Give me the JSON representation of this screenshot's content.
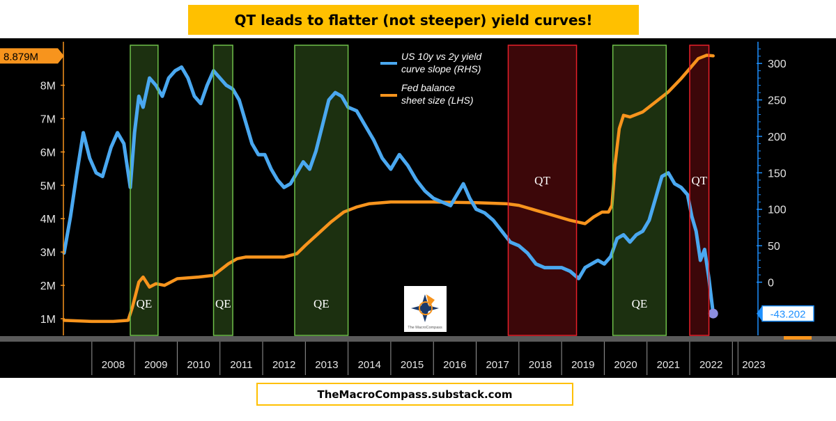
{
  "title": "QT leads to flatter (not steeper) yield curves!",
  "footer": "TheMacroCompass.substack.com",
  "colors": {
    "yield_curve": "#4aa8f0",
    "balance_sheet": "#f7941d",
    "qe_band": "#5e9e34",
    "qt_band": "#d71920",
    "background": "#000000",
    "banner": "#ffc000"
  },
  "logo": {
    "icon": "compass-logo",
    "caption": "The MacroCompass"
  },
  "chart_data": {
    "type": "line",
    "x_ticks": [
      "2008",
      "2009",
      "2010",
      "2011",
      "2012",
      "2013",
      "2014",
      "2015",
      "2016",
      "2017",
      "2018",
      "2019",
      "2020",
      "2021",
      "2022",
      "2023"
    ],
    "x_range": [
      2007.35,
      2023.55
    ],
    "left_axis": {
      "ticks": [
        "1M",
        "2M",
        "3M",
        "4M",
        "5M",
        "6M",
        "7M",
        "8M"
      ],
      "range": [
        0.5,
        9.2
      ],
      "last_value_label": "8.879M"
    },
    "right_axis": {
      "ticks": [
        "0",
        "50",
        "100",
        "150",
        "200",
        "250",
        "300"
      ],
      "range": [
        -73,
        325
      ],
      "last_value_label": "-43.202"
    },
    "legend": [
      {
        "name": "US 10y vs 2y yield curve slope (RHS)",
        "color": "#4aa8f0"
      },
      {
        "name": "Fed balance sheet size (LHS)",
        "color": "#f7941d"
      }
    ],
    "bands": [
      {
        "label": "QE",
        "type": "QE",
        "start": 2008.9,
        "end": 2009.55
      },
      {
        "label": "QE",
        "type": "QE",
        "start": 2010.85,
        "end": 2011.3
      },
      {
        "label": "QE",
        "type": "QE",
        "start": 2012.75,
        "end": 2014.0
      },
      {
        "label": "QT",
        "type": "QT",
        "start": 2017.75,
        "end": 2019.35
      },
      {
        "label": "QE",
        "type": "QE",
        "start": 2020.2,
        "end": 2021.45
      },
      {
        "label": "QT",
        "type": "QT",
        "start": 2022.0,
        "end": 2022.45
      }
    ],
    "series": [
      {
        "name": "US 10y vs 2y yield curve slope (RHS)",
        "axis": "right",
        "x": [
          2007.35,
          2007.5,
          2007.65,
          2007.8,
          2007.95,
          2008.1,
          2008.25,
          2008.45,
          2008.6,
          2008.75,
          2008.9,
          2009.0,
          2009.1,
          2009.2,
          2009.35,
          2009.5,
          2009.65,
          2009.8,
          2009.95,
          2010.1,
          2010.25,
          2010.4,
          2010.55,
          2010.7,
          2010.85,
          2011.0,
          2011.15,
          2011.3,
          2011.45,
          2011.6,
          2011.75,
          2011.9,
          2012.05,
          2012.2,
          2012.35,
          2012.5,
          2012.65,
          2012.8,
          2012.95,
          2013.1,
          2013.25,
          2013.4,
          2013.55,
          2013.7,
          2013.85,
          2014.0,
          2014.2,
          2014.4,
          2014.6,
          2014.8,
          2015.0,
          2015.2,
          2015.4,
          2015.6,
          2015.8,
          2016.0,
          2016.2,
          2016.4,
          2016.55,
          2016.7,
          2016.85,
          2017.0,
          2017.2,
          2017.4,
          2017.6,
          2017.8,
          2018.0,
          2018.2,
          2018.4,
          2018.6,
          2018.8,
          2019.0,
          2019.2,
          2019.4,
          2019.55,
          2019.7,
          2019.85,
          2020.0,
          2020.15,
          2020.3,
          2020.45,
          2020.6,
          2020.75,
          2020.9,
          2021.05,
          2021.2,
          2021.35,
          2021.5,
          2021.65,
          2021.8,
          2021.95,
          2022.05,
          2022.15,
          2022.25,
          2022.35,
          2022.45,
          2022.55
        ],
        "values": [
          40,
          90,
          150,
          205,
          170,
          150,
          145,
          185,
          205,
          190,
          130,
          205,
          255,
          240,
          280,
          270,
          255,
          280,
          290,
          295,
          280,
          255,
          245,
          270,
          290,
          280,
          270,
          265,
          250,
          220,
          190,
          175,
          175,
          155,
          140,
          130,
          135,
          150,
          165,
          155,
          180,
          215,
          250,
          260,
          255,
          240,
          235,
          215,
          195,
          170,
          155,
          175,
          160,
          140,
          125,
          115,
          110,
          105,
          120,
          135,
          115,
          100,
          95,
          85,
          70,
          55,
          50,
          40,
          25,
          20,
          20,
          20,
          15,
          5,
          20,
          25,
          30,
          25,
          35,
          60,
          65,
          55,
          65,
          70,
          85,
          115,
          145,
          150,
          135,
          130,
          120,
          90,
          70,
          30,
          45,
          5,
          -43
        ]
      },
      {
        "name": "Fed balance sheet size (LHS)",
        "axis": "left",
        "x": [
          2007.35,
          2008.0,
          2008.5,
          2008.85,
          2008.95,
          2009.1,
          2009.2,
          2009.35,
          2009.5,
          2009.7,
          2010.0,
          2010.5,
          2010.85,
          2011.0,
          2011.2,
          2011.4,
          2011.6,
          2012.0,
          2012.5,
          2012.8,
          2013.0,
          2013.3,
          2013.6,
          2013.9,
          2014.2,
          2014.5,
          2014.8,
          2015.0,
          2016.0,
          2017.0,
          2017.7,
          2018.0,
          2018.4,
          2018.8,
          2019.2,
          2019.55,
          2019.75,
          2019.95,
          2020.1,
          2020.18,
          2020.25,
          2020.35,
          2020.45,
          2020.6,
          2020.9,
          2021.2,
          2021.5,
          2021.8,
          2022.0,
          2022.2,
          2022.4,
          2022.55
        ],
        "values": [
          0.95,
          0.92,
          0.92,
          0.95,
          1.35,
          2.1,
          2.25,
          1.95,
          2.05,
          2.0,
          2.2,
          2.25,
          2.3,
          2.45,
          2.65,
          2.8,
          2.85,
          2.85,
          2.85,
          2.95,
          3.2,
          3.55,
          3.9,
          4.2,
          4.35,
          4.45,
          4.48,
          4.5,
          4.5,
          4.48,
          4.45,
          4.4,
          4.25,
          4.1,
          3.95,
          3.85,
          4.05,
          4.2,
          4.2,
          4.4,
          5.6,
          6.7,
          7.1,
          7.05,
          7.2,
          7.5,
          7.8,
          8.2,
          8.5,
          8.8,
          8.9,
          8.88
        ]
      }
    ]
  }
}
